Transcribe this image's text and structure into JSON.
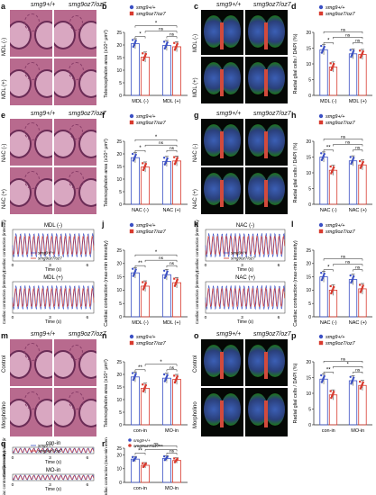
{
  "genotypes": {
    "wt": "smg9+/+",
    "mut": "smg9oz7/oz7"
  },
  "colors": {
    "wt": "#3b50c4",
    "mut": "#d83a2e"
  },
  "panel_letters": [
    "a",
    "b",
    "c",
    "d",
    "e",
    "f",
    "g",
    "h",
    "i",
    "j",
    "k",
    "l",
    "m",
    "n",
    "o",
    "p",
    "q",
    "r"
  ],
  "rows": [
    {
      "condA": "MDL (-)",
      "condB": "MDL (+)"
    },
    {
      "condA": "NAC (-)",
      "condB": "NAC (+)"
    },
    {
      "condA": "Control",
      "condB": "Morpholino"
    }
  ],
  "traces": {
    "i": [
      "MDL (-)",
      "MDL (+)"
    ],
    "k": [
      "NAC (-)",
      "NAC (+)"
    ],
    "q": [
      "con-in",
      "MO-in"
    ],
    "ylabel": "Cardiac contraction (intensity)",
    "xlabel": "Time (s)",
    "ticks": [
      "0",
      "3",
      "6"
    ]
  },
  "chart_data": [
    {
      "panel": "b",
      "type": "bar",
      "ylabel": "Telencephalon area (x10⁴ μm²)",
      "categories": [
        "MDL (-)",
        "MDL (+)"
      ],
      "yticks": [
        "0",
        "5",
        "10",
        "15",
        "20",
        "25"
      ],
      "ylim": [
        0,
        25
      ],
      "series": [
        {
          "name": "smg9+/+",
          "values": [
            20.5,
            19.8
          ]
        },
        {
          "name": "smg9oz7/oz7",
          "values": [
            15.2,
            19.3
          ]
        }
      ],
      "annotations": [
        {
          "a": 0,
          "b": 1,
          "text": "*"
        },
        {
          "a": 0,
          "b": 3,
          "text": "*"
        },
        {
          "a": 1,
          "b": 3,
          "text": "ns"
        },
        {
          "a": 2,
          "b": 3,
          "text": "ns"
        }
      ]
    },
    {
      "panel": "d",
      "type": "bar",
      "ylabel": "Radial glial cells / DAPI (%)",
      "categories": [
        "MDL (-)",
        "MDL (+)"
      ],
      "yticks": [
        "0",
        "5",
        "10",
        "15",
        "20"
      ],
      "ylim": [
        0,
        20
      ],
      "series": [
        {
          "name": "smg9+/+",
          "values": [
            14.5,
            13.2
          ]
        },
        {
          "name": "smg9oz7/oz7",
          "values": [
            9.0,
            13.0
          ]
        }
      ],
      "annotations": [
        {
          "a": 0,
          "b": 1,
          "text": "*"
        },
        {
          "a": 0,
          "b": 3,
          "text": "ns"
        },
        {
          "a": 1,
          "b": 3,
          "text": "ns"
        },
        {
          "a": 2,
          "b": 3,
          "text": "ns"
        }
      ]
    },
    {
      "panel": "f",
      "type": "bar",
      "ylabel": "Telencephalon area (x10⁴ μm²)",
      "categories": [
        "NAC (-)",
        "NAC (+)"
      ],
      "yticks": [
        "0",
        "5",
        "10",
        "15",
        "20",
        "25"
      ],
      "ylim": [
        0,
        25
      ],
      "series": [
        {
          "name": "smg9+/+",
          "values": [
            18.5,
            17.0
          ]
        },
        {
          "name": "smg9oz7/oz7",
          "values": [
            14.8,
            17.2
          ]
        }
      ],
      "annotations": [
        {
          "a": 0,
          "b": 1,
          "text": "*"
        },
        {
          "a": 0,
          "b": 3,
          "text": "*"
        },
        {
          "a": 1,
          "b": 3,
          "text": "ns"
        },
        {
          "a": 2,
          "b": 3,
          "text": "ns"
        }
      ]
    },
    {
      "panel": "h",
      "type": "bar",
      "ylabel": "Radial glial cells / DAPI (%)",
      "categories": [
        "NAC (-)",
        "NAC (+)"
      ],
      "yticks": [
        "0",
        "5",
        "10",
        "15",
        "20"
      ],
      "ylim": [
        0,
        20
      ],
      "series": [
        {
          "name": "smg9+/+",
          "values": [
            15.0,
            13.8
          ]
        },
        {
          "name": "smg9oz7/oz7",
          "values": [
            10.8,
            12.5
          ]
        }
      ],
      "annotations": [
        {
          "a": 0,
          "b": 1,
          "text": "**"
        },
        {
          "a": 0,
          "b": 3,
          "text": "ns"
        },
        {
          "a": 1,
          "b": 3,
          "text": "ns"
        },
        {
          "a": 2,
          "b": 3,
          "text": "ns"
        }
      ]
    },
    {
      "panel": "j",
      "type": "bar",
      "ylabel": "Cardiac contraction (max-min intensity)",
      "categories": [
        "MDL (-)",
        "MDL (+)"
      ],
      "yticks": [
        "0",
        "5",
        "10",
        "15",
        "20",
        "25"
      ],
      "ylim": [
        0,
        25
      ],
      "series": [
        {
          "name": "smg9+/+",
          "values": [
            16.5,
            15.8
          ]
        },
        {
          "name": "smg9oz7/oz7",
          "values": [
            11.5,
            12.8
          ]
        }
      ],
      "annotations": [
        {
          "a": 0,
          "b": 1,
          "text": "**"
        },
        {
          "a": 0,
          "b": 3,
          "text": "*"
        },
        {
          "a": 1,
          "b": 3,
          "text": "ns"
        },
        {
          "a": 2,
          "b": 3,
          "text": "ns"
        }
      ]
    },
    {
      "panel": "l",
      "type": "bar",
      "ylabel": "Cardiac contraction (max-min intensity)",
      "categories": [
        "NAC (-)",
        "NAC (+)"
      ],
      "yticks": [
        "0",
        "5",
        "10",
        "15",
        "20",
        "25"
      ],
      "ylim": [
        0,
        25
      ],
      "series": [
        {
          "name": "smg9+/+",
          "values": [
            15.0,
            14.0
          ]
        },
        {
          "name": "smg9oz7/oz7",
          "values": [
            10.0,
            10.5
          ]
        }
      ],
      "annotations": [
        {
          "a": 0,
          "b": 1,
          "text": "*"
        },
        {
          "a": 0,
          "b": 3,
          "text": "ns"
        },
        {
          "a": 1,
          "b": 3,
          "text": "ns"
        },
        {
          "a": 2,
          "b": 3,
          "text": "ns"
        }
      ]
    },
    {
      "panel": "n",
      "type": "bar",
      "ylabel": "Telencephalon area (x10⁴ μm²)",
      "categories": [
        "con-in",
        "MO-in"
      ],
      "yticks": [
        "0",
        "5",
        "10",
        "15",
        "20",
        "25"
      ],
      "ylim": [
        0,
        25
      ],
      "series": [
        {
          "name": "smg9+/+",
          "values": [
            19.0,
            18.5
          ]
        },
        {
          "name": "smg9oz7/oz7",
          "values": [
            14.5,
            18.0
          ]
        }
      ],
      "annotations": [
        {
          "a": 0,
          "b": 1,
          "text": "**"
        },
        {
          "a": 1,
          "b": 3,
          "text": "*"
        },
        {
          "a": 2,
          "b": 3,
          "text": "ns"
        }
      ]
    },
    {
      "panel": "p",
      "type": "bar",
      "ylabel": "Radial glial cells / DAPI (%)",
      "categories": [
        "con-in",
        "MO-in"
      ],
      "yticks": [
        "0",
        "5",
        "10",
        "15",
        "20"
      ],
      "ylim": [
        0,
        20
      ],
      "series": [
        {
          "name": "smg9+/+",
          "values": [
            14.5,
            14.0
          ]
        },
        {
          "name": "smg9oz7/oz7",
          "values": [
            9.5,
            12.5
          ]
        }
      ],
      "annotations": [
        {
          "a": 0,
          "b": 1,
          "text": "**"
        },
        {
          "a": 0,
          "b": 3,
          "text": "ns"
        },
        {
          "a": 1,
          "b": 3,
          "text": "*"
        },
        {
          "a": 2,
          "b": 3,
          "text": "ns"
        }
      ]
    },
    {
      "panel": "r",
      "type": "bar",
      "ylabel": "Cardiac contraction (max-min intensity)",
      "categories": [
        "con-in",
        "MO-in"
      ],
      "yticks": [
        "0",
        "5",
        "10",
        "15",
        "20",
        "25"
      ],
      "ylim": [
        0,
        25
      ],
      "series": [
        {
          "name": "smg9+/+",
          "values": [
            17.0,
            17.5
          ]
        },
        {
          "name": "smg9oz7/oz7",
          "values": [
            12.5,
            16.0
          ]
        }
      ],
      "annotations": [
        {
          "a": 0,
          "b": 1,
          "text": "**"
        },
        {
          "a": 1,
          "b": 3,
          "text": "**"
        },
        {
          "a": 0,
          "b": 3,
          "text": "ns"
        },
        {
          "a": 2,
          "b": 3,
          "text": "ns"
        }
      ]
    }
  ]
}
